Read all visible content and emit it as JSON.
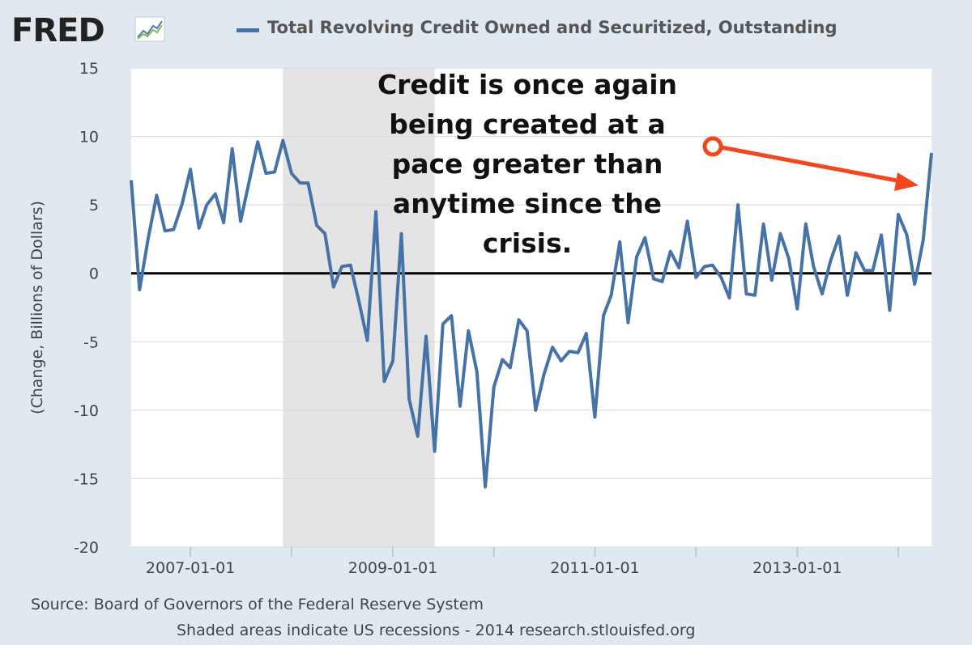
{
  "brand": {
    "logo_text": "FRED",
    "logo_icon": "line-chart-icon"
  },
  "chart_data": {
    "type": "line",
    "ylabel": "(Change, Billions of Dollars)",
    "ylim": [
      -20,
      15
    ],
    "yticks": [
      15,
      10,
      5,
      0,
      -5,
      -10,
      -15,
      -20
    ],
    "x_range": [
      "2006-06-01",
      "2014-05-01"
    ],
    "xtick_labels": [
      "2007-01-01",
      "2009-01-01",
      "2011-01-01",
      "2013-01-01"
    ],
    "series": [
      {
        "name": "Total Revolving Credit Owned and Securitized, Outstanding",
        "color": "#4572a7",
        "start": "2006-06",
        "frequency": "monthly",
        "values": [
          6.8,
          -1.2,
          2.5,
          5.7,
          3.1,
          3.2,
          5.0,
          7.6,
          3.3,
          5.0,
          5.8,
          3.7,
          9.1,
          3.8,
          6.7,
          9.6,
          7.3,
          7.4,
          9.7,
          7.3,
          6.6,
          6.6,
          3.5,
          2.9,
          -1.0,
          0.5,
          0.6,
          -2.1,
          -4.9,
          4.5,
          -7.9,
          -6.4,
          2.9,
          -9.2,
          -11.9,
          -4.6,
          -13.0,
          -3.7,
          -3.1,
          -9.7,
          -4.2,
          -7.2,
          -15.6,
          -8.3,
          -6.3,
          -6.9,
          -3.4,
          -4.2,
          -10.0,
          -7.4,
          -5.4,
          -6.4,
          -5.7,
          -5.8,
          -4.4,
          -10.5,
          -3.1,
          -1.6,
          2.3,
          -3.6,
          1.2,
          2.6,
          -0.4,
          -0.6,
          1.6,
          0.4,
          3.8,
          -0.3,
          0.5,
          0.6,
          -0.3,
          -1.8,
          5.0,
          -1.5,
          -1.6,
          3.6,
          -0.5,
          2.9,
          1.1,
          -2.6,
          3.6,
          0.5,
          -1.5,
          0.9,
          2.7,
          -1.6,
          1.5,
          0.2,
          0.2,
          2.8,
          -2.7,
          4.3,
          2.8,
          -0.8,
          2.4,
          8.8
        ]
      }
    ],
    "recession": {
      "start": "2007-12-01",
      "end": "2009-06-01",
      "color": "#e4e4e4"
    },
    "zero_line": true,
    "grid": true,
    "annotation": {
      "text_lines": [
        "Credit is once again",
        "being created at a",
        "pace greater than",
        "anytime since the",
        "crisis."
      ],
      "arrow_color": "#f2461c"
    }
  },
  "footer": {
    "source": "Source: Board of Governors of the Federal Reserve System",
    "note": "Shaded areas indicate US recessions - 2014 research.stlouisfed.org"
  }
}
